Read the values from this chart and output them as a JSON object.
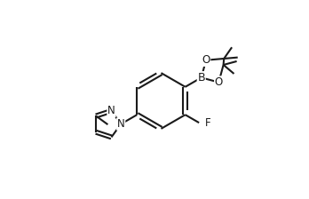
{
  "bg_color": "#ffffff",
  "lc": "#1a1a1a",
  "lw": 1.5,
  "fs": 8.5,
  "figsize": [
    3.48,
    2.24
  ],
  "dpi": 100,
  "xlim": [
    -1.0,
    9.5
  ],
  "ylim": [
    -0.5,
    7.0
  ]
}
